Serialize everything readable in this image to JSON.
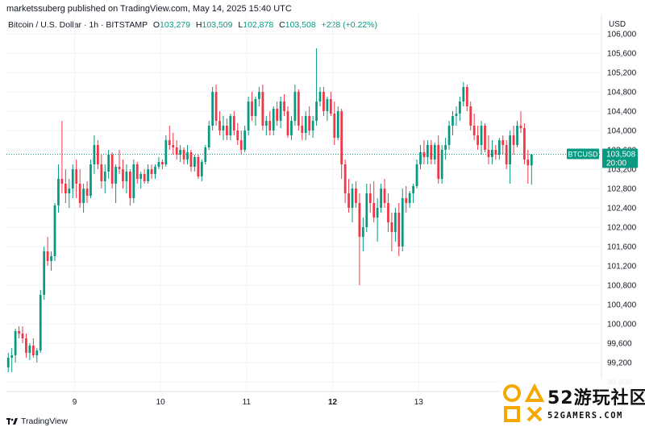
{
  "publisher_line": "marketssuberg published on TradingView.com, May 14, 2025 15:40 UTC",
  "legend": {
    "symbol": "Bitcoin / U.S. Dollar · 1h · BITSTAMP",
    "o_label": "O",
    "o_value": "103,279",
    "h_label": "H",
    "h_value": "103,509",
    "l_label": "L",
    "l_value": "102,878",
    "c_label": "C",
    "c_value": "103,508",
    "change": "+228 (+0.22%)"
  },
  "footer": {
    "brand": "TradingView"
  },
  "watermark": {
    "top_text": "52游玩社区",
    "bottom_text": "52GAMERS.COM"
  },
  "colors": {
    "up": "#089981",
    "down": "#f23645",
    "last_price_line": "#089981",
    "grid": "#f0f3fa",
    "axis_text": "#131722"
  },
  "chart_data": {
    "type": "candlestick",
    "title": "Bitcoin / U.S. Dollar · 1h · BITSTAMP",
    "currency_label": "USD",
    "ylim": [
      98600,
      106400
    ],
    "y_ticks": [
      98800,
      99200,
      99600,
      100000,
      100400,
      100800,
      101200,
      101600,
      102000,
      102400,
      102800,
      103200,
      103600,
      104000,
      104400,
      104800,
      105200,
      105600,
      106000
    ],
    "y_tick_labels": [
      "98,800",
      "99,200",
      "99,600",
      "100,000",
      "100,400",
      "100,800",
      "101,200",
      "101,600",
      "102,000",
      "102,400",
      "102,800",
      "103,200",
      "103,600",
      "104,000",
      "104,400",
      "104,800",
      "105,200",
      "105,600",
      "106,000"
    ],
    "x_ticks": [
      {
        "pos": 19,
        "label": "9"
      },
      {
        "pos": 43,
        "label": "10"
      },
      {
        "pos": 67,
        "label": "11"
      },
      {
        "pos": 91,
        "label": "12"
      },
      {
        "pos": 115,
        "label": "13"
      }
    ],
    "x_range": [
      0,
      166
    ],
    "grid": true,
    "last_price": {
      "value": 103508,
      "label": "BTCUSD",
      "price_text": "103,508",
      "countdown": "20:00"
    },
    "candles": [
      [
        99100,
        99400,
        99000,
        99300
      ],
      [
        99300,
        99500,
        99000,
        99350
      ],
      [
        99350,
        99900,
        99200,
        99850
      ],
      [
        99850,
        99950,
        99700,
        99800
      ],
      [
        99800,
        99950,
        99600,
        99700
      ],
      [
        99700,
        99800,
        99300,
        99400
      ],
      [
        99400,
        99600,
        99250,
        99550
      ],
      [
        99550,
        99700,
        99300,
        99350
      ],
      [
        99350,
        99500,
        99200,
        99450
      ],
      [
        99450,
        100700,
        99400,
        100600
      ],
      [
        100600,
        101600,
        100500,
        101500
      ],
      [
        101500,
        101800,
        101200,
        101300
      ],
      [
        101300,
        101500,
        101100,
        101400
      ],
      [
        101400,
        102500,
        101300,
        102450
      ],
      [
        102450,
        103300,
        102300,
        103000
      ],
      [
        103000,
        104200,
        102700,
        102900
      ],
      [
        102900,
        103200,
        102500,
        102700
      ],
      [
        102700,
        103000,
        102400,
        102800
      ],
      [
        102800,
        103300,
        102600,
        103200
      ],
      [
        103200,
        103400,
        102600,
        102900
      ],
      [
        102900,
        103200,
        102400,
        102500
      ],
      [
        102500,
        102900,
        102300,
        102800
      ],
      [
        102800,
        102950,
        102500,
        102650
      ],
      [
        102650,
        103400,
        102600,
        103300
      ],
      [
        103300,
        103900,
        103100,
        103700
      ],
      [
        103700,
        103800,
        103200,
        103300
      ],
      [
        103300,
        103500,
        102800,
        102950
      ],
      [
        102950,
        103300,
        102700,
        103150
      ],
      [
        103150,
        103600,
        103000,
        103500
      ],
      [
        103500,
        103550,
        102800,
        102900
      ],
      [
        102900,
        103300,
        102500,
        103250
      ],
      [
        103250,
        103600,
        103100,
        103200
      ],
      [
        103200,
        103400,
        102800,
        102950
      ],
      [
        102950,
        103300,
        102700,
        103150
      ],
      [
        103150,
        103200,
        102450,
        102600
      ],
      [
        102600,
        103400,
        102500,
        103300
      ],
      [
        103300,
        103350,
        102900,
        103000
      ],
      [
        103000,
        103150,
        102800,
        103100
      ],
      [
        103100,
        103200,
        102900,
        102950
      ],
      [
        102950,
        103300,
        102900,
        103200
      ],
      [
        103200,
        103300,
        103000,
        103100
      ],
      [
        103100,
        103300,
        103000,
        103250
      ],
      [
        103250,
        103450,
        103200,
        103350
      ],
      [
        103350,
        103400,
        103200,
        103300
      ],
      [
        103300,
        103900,
        103250,
        103800
      ],
      [
        103800,
        104100,
        103600,
        103700
      ],
      [
        103700,
        103950,
        103500,
        103650
      ],
      [
        103650,
        103800,
        103400,
        103500
      ],
      [
        103500,
        103700,
        103350,
        103600
      ],
      [
        103600,
        103650,
        103300,
        103400
      ],
      [
        103400,
        103700,
        103300,
        103550
      ],
      [
        103550,
        103600,
        103150,
        103250
      ],
      [
        103250,
        103500,
        103150,
        103450
      ],
      [
        103450,
        103500,
        103000,
        103050
      ],
      [
        103050,
        103400,
        102950,
        103350
      ],
      [
        103350,
        103700,
        103300,
        103650
      ],
      [
        103650,
        104200,
        103600,
        104100
      ],
      [
        104100,
        104900,
        104000,
        104800
      ],
      [
        104800,
        104950,
        104100,
        104200
      ],
      [
        104200,
        104400,
        103900,
        104000
      ],
      [
        104000,
        104300,
        103800,
        104100
      ],
      [
        104100,
        104250,
        103800,
        103900
      ],
      [
        103900,
        104350,
        103800,
        104300
      ],
      [
        104300,
        104400,
        103900,
        104000
      ],
      [
        104000,
        104150,
        103700,
        103800
      ],
      [
        103800,
        104000,
        103500,
        103600
      ],
      [
        103600,
        104100,
        103550,
        104000
      ],
      [
        104000,
        104700,
        103900,
        104600
      ],
      [
        104600,
        104800,
        104200,
        104300
      ],
      [
        104300,
        104700,
        104100,
        104650
      ],
      [
        104650,
        104900,
        104500,
        104800
      ],
      [
        104800,
        104950,
        104000,
        104100
      ],
      [
        104100,
        104300,
        103900,
        104200
      ],
      [
        104200,
        104400,
        103900,
        104000
      ],
      [
        104000,
        104500,
        103900,
        104450
      ],
      [
        104450,
        104600,
        104100,
        104200
      ],
      [
        104200,
        104700,
        104050,
        104600
      ],
      [
        104600,
        104750,
        104300,
        104400
      ],
      [
        104400,
        104500,
        103850,
        103900
      ],
      [
        103900,
        104300,
        103800,
        104200
      ],
      [
        104200,
        104950,
        104100,
        104800
      ],
      [
        104800,
        104850,
        104000,
        104100
      ],
      [
        104100,
        104300,
        103800,
        103950
      ],
      [
        103950,
        104400,
        103800,
        104300
      ],
      [
        104300,
        104500,
        103900,
        104000
      ],
      [
        104000,
        104300,
        103850,
        104200
      ],
      [
        104200,
        105700,
        104100,
        104600
      ],
      [
        104600,
        104900,
        104500,
        104800
      ],
      [
        104800,
        104900,
        104300,
        104400
      ],
      [
        104400,
        104700,
        104200,
        104650
      ],
      [
        104650,
        104800,
        104300,
        104350
      ],
      [
        104350,
        104600,
        103700,
        103850
      ],
      [
        103850,
        104500,
        103800,
        104400
      ],
      [
        104400,
        104450,
        103000,
        103300
      ],
      [
        103300,
        103400,
        102500,
        102700
      ],
      [
        102700,
        103000,
        102300,
        102400
      ],
      [
        102400,
        102900,
        102100,
        102800
      ],
      [
        102800,
        102950,
        102400,
        102500
      ],
      [
        102500,
        102700,
        100800,
        101800
      ],
      [
        101800,
        102200,
        101500,
        102000
      ],
      [
        102000,
        102900,
        101900,
        102700
      ],
      [
        102700,
        102900,
        102300,
        102500
      ],
      [
        102500,
        102950,
        102100,
        102200
      ],
      [
        102200,
        102600,
        101700,
        102400
      ],
      [
        102400,
        102900,
        102300,
        102800
      ],
      [
        102800,
        103000,
        102400,
        102500
      ],
      [
        102500,
        102700,
        101900,
        102100
      ],
      [
        102100,
        102300,
        101500,
        101900
      ],
      [
        101900,
        102400,
        101700,
        102300
      ],
      [
        102300,
        102500,
        101400,
        101600
      ],
      [
        101600,
        102800,
        101500,
        102600
      ],
      [
        102600,
        102850,
        102300,
        102500
      ],
      [
        102500,
        102750,
        102400,
        102700
      ],
      [
        102700,
        102900,
        102500,
        102850
      ],
      [
        102850,
        103400,
        102800,
        103300
      ],
      [
        103300,
        103700,
        103200,
        103550
      ],
      [
        103550,
        103800,
        103300,
        103450
      ],
      [
        103450,
        103800,
        103300,
        103700
      ],
      [
        103700,
        103800,
        103300,
        103400
      ],
      [
        103400,
        103750,
        103300,
        103700
      ],
      [
        103700,
        103900,
        102900,
        103000
      ],
      [
        103000,
        103700,
        102900,
        103600
      ],
      [
        103600,
        103850,
        103400,
        103700
      ],
      [
        103700,
        104200,
        103600,
        104100
      ],
      [
        104100,
        104400,
        103900,
        104300
      ],
      [
        104300,
        104500,
        104100,
        104350
      ],
      [
        104350,
        104700,
        104200,
        104600
      ],
      [
        104600,
        105000,
        104500,
        104900
      ],
      [
        104900,
        104950,
        104400,
        104500
      ],
      [
        104500,
        104600,
        104000,
        104100
      ],
      [
        104100,
        104350,
        103800,
        103900
      ],
      [
        103900,
        104100,
        103600,
        103700
      ],
      [
        103700,
        104200,
        103500,
        104100
      ],
      [
        104100,
        104150,
        103550,
        103600
      ],
      [
        103600,
        103900,
        103300,
        103450
      ],
      [
        103450,
        103800,
        103300,
        103600
      ],
      [
        103600,
        103700,
        103400,
        103500
      ],
      [
        103500,
        103850,
        103400,
        103800
      ],
      [
        103800,
        103900,
        103500,
        103700
      ],
      [
        103700,
        103800,
        103200,
        103300
      ],
      [
        103300,
        104000,
        102900,
        103900
      ],
      [
        103900,
        104100,
        103500,
        103700
      ],
      [
        103700,
        104200,
        103650,
        104100
      ],
      [
        104100,
        104400,
        103950,
        104050
      ],
      [
        104050,
        104150,
        103300,
        103400
      ],
      [
        103400,
        103600,
        102900,
        103279
      ],
      [
        103279,
        103509,
        102878,
        103508
      ]
    ]
  }
}
